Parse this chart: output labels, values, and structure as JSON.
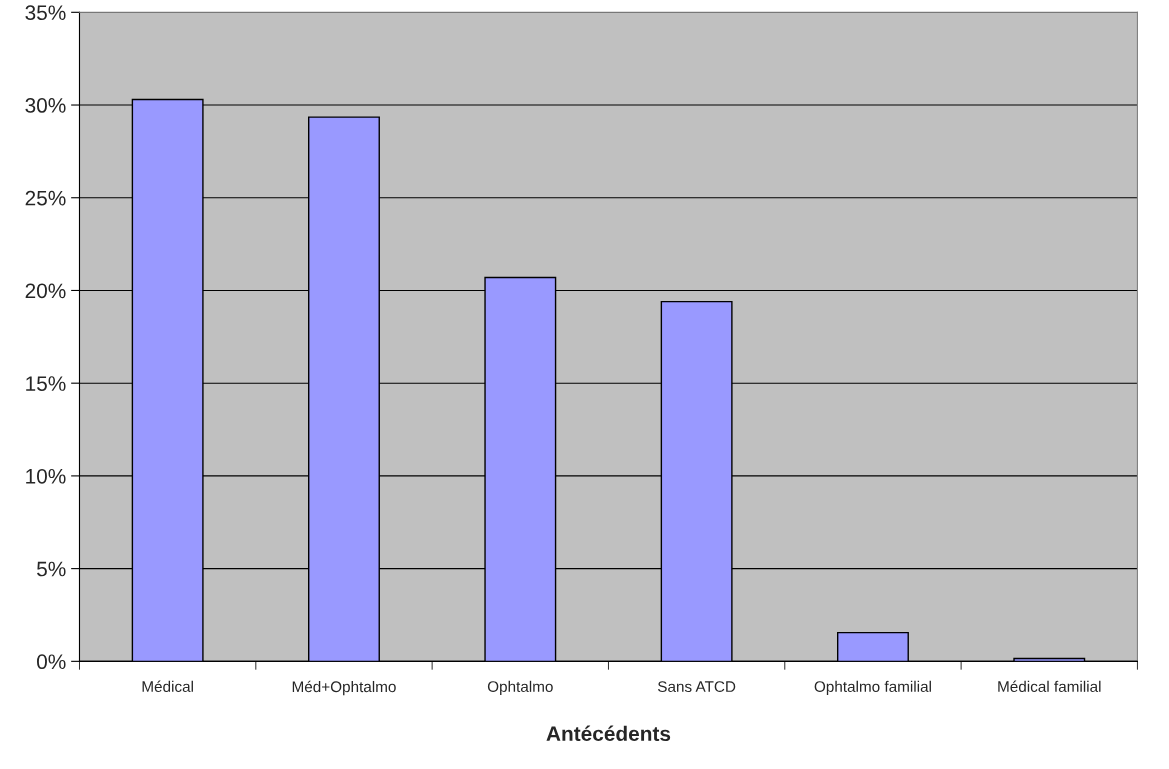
{
  "chart_data": {
    "type": "bar",
    "xlabel": "Antécédents",
    "categories": [
      "Médical",
      "Méd+Ophtalmo",
      "Ophtalmo",
      "Sans ATCD",
      "Ophtalmo familial",
      "Médical familial"
    ],
    "values": [
      30.3,
      29.35,
      20.7,
      19.4,
      1.55,
      0.15
    ],
    "color": "#9999ff",
    "ylim": [
      0,
      35
    ],
    "yticks": [
      {
        "value": 0,
        "label": "0%"
      },
      {
        "value": 5,
        "label": "5%"
      },
      {
        "value": 10,
        "label": "10%"
      },
      {
        "value": 15,
        "label": "15%"
      },
      {
        "value": 20,
        "label": "20%"
      },
      {
        "value": 25,
        "label": "25%"
      },
      {
        "value": 30,
        "label": "30%"
      },
      {
        "value": 35,
        "label": "35%"
      }
    ],
    "grid": "y",
    "legend": false
  }
}
